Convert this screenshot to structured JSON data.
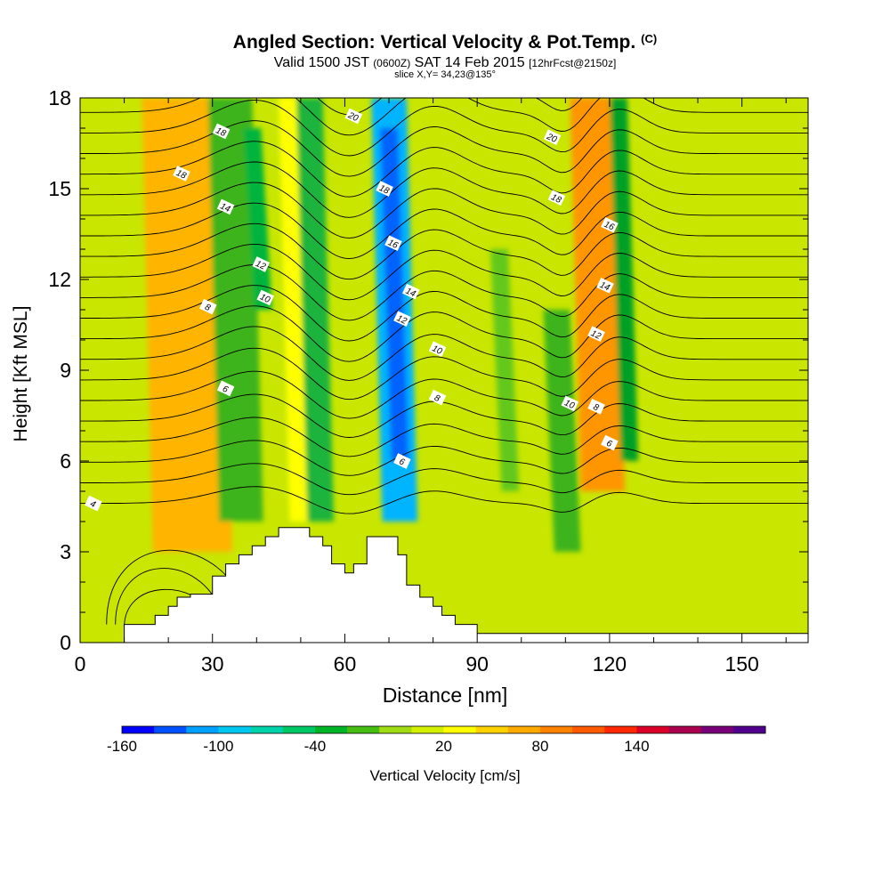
{
  "title": {
    "main": "Angled Section: Vertical Velocity & Pot.Temp.",
    "tag": "(C)",
    "valid_prefix": "Valid 1500 JST",
    "valid_z": "(0600Z)",
    "valid_date": "SAT 14 Feb 2015",
    "valid_fcst": "[12hrFcst@2150z]",
    "slice": "slice X,Y= 34,23@135°"
  },
  "chart_data": {
    "type": "heatmap",
    "xlabel": "Distance [nm]",
    "ylabel": "Height [Kft MSL]",
    "xlim": [
      0,
      165
    ],
    "ylim": [
      0,
      18
    ],
    "x_ticks": [
      "0",
      "30",
      "60",
      "90",
      "120",
      "150"
    ],
    "y_ticks": [
      "0",
      "3",
      "6",
      "9",
      "12",
      "15",
      "18"
    ],
    "colorbar": {
      "label": "Vertical Velocity [cm/s]",
      "tick_labels": [
        "-160",
        "-100",
        "-40",
        "20",
        "80",
        "140"
      ],
      "colors": [
        "#0000ff",
        "#0050ff",
        "#00a0ff",
        "#00c8f0",
        "#00d2aa",
        "#00c864",
        "#00b428",
        "#46be14",
        "#a0dc14",
        "#d2f000",
        "#ffff00",
        "#ffd200",
        "#ffaa00",
        "#ff8200",
        "#ff5a00",
        "#ff2800",
        "#dc0028",
        "#aa0050",
        "#780078",
        "#50008c"
      ]
    },
    "background_color": "#c8e600",
    "bands": [
      {
        "x": 23,
        "half_width": 4,
        "class": "orange-red",
        "color": "#ff7800",
        "y_range": [
          6,
          18
        ]
      },
      {
        "x": 23,
        "half_width": 9,
        "class": "orange",
        "color": "#ffb400",
        "y_range": [
          3,
          18
        ]
      },
      {
        "x": 34,
        "half_width": 5,
        "class": "dark-green",
        "color": "#3cb41e",
        "y_range": [
          4,
          18
        ]
      },
      {
        "x": 39,
        "half_width": 2,
        "class": "green",
        "color": "#00b43c",
        "y_range": [
          11,
          17
        ]
      },
      {
        "x": 47,
        "half_width": 2,
        "class": "yellow",
        "color": "#ffff00",
        "y_range": [
          4,
          18
        ]
      },
      {
        "x": 52,
        "half_width": 3,
        "class": "green",
        "color": "#1eb43c",
        "y_range": [
          4,
          18
        ]
      },
      {
        "x": 70,
        "half_width": 4,
        "class": "cyan-blue",
        "color": "#00b4ff",
        "y_range": [
          4,
          18
        ]
      },
      {
        "x": 70,
        "half_width": 2,
        "class": "blue",
        "color": "#0064ff",
        "y_range": [
          6,
          17
        ]
      },
      {
        "x": 95,
        "half_width": 2,
        "class": "green",
        "color": "#64c81e",
        "y_range": [
          5,
          13
        ]
      },
      {
        "x": 108,
        "half_width": 3,
        "class": "green",
        "color": "#3cb41e",
        "y_range": [
          3,
          11
        ]
      },
      {
        "x": 116,
        "half_width": 3,
        "class": "red",
        "color": "#ff4600",
        "y_range": [
          6,
          13
        ]
      },
      {
        "x": 116,
        "half_width": 5,
        "class": "orange",
        "color": "#ff9600",
        "y_range": [
          5,
          18
        ]
      },
      {
        "x": 122,
        "half_width": 2,
        "class": "dark-green",
        "color": "#00a028",
        "y_range": [
          6,
          18
        ]
      }
    ],
    "terrain_profile": {
      "x": [
        0,
        10,
        17,
        20,
        22,
        25,
        30,
        33,
        36,
        39,
        42,
        45,
        47,
        50,
        52,
        55,
        57,
        60,
        62,
        65,
        67,
        70,
        72,
        74,
        77,
        80,
        82,
        85,
        90,
        165
      ],
      "height": [
        0,
        0.6,
        0.9,
        1.2,
        1.5,
        1.6,
        2.2,
        2.6,
        2.9,
        3.2,
        3.5,
        3.8,
        3.8,
        3.8,
        3.5,
        3.2,
        2.6,
        2.3,
        2.6,
        3.5,
        3.5,
        3.5,
        2.9,
        1.9,
        1.5,
        1.2,
        0.9,
        0.6,
        0.3,
        0.3
      ]
    },
    "isentropes": {
      "levels": [
        4,
        6,
        8,
        10,
        12,
        14,
        16,
        18,
        20
      ],
      "labels": [
        {
          "text": "4",
          "x": 3,
          "y": 4.6
        },
        {
          "text": "6",
          "x": 33,
          "y": 8.4
        },
        {
          "text": "8",
          "x": 29,
          "y": 11.1
        },
        {
          "text": "10",
          "x": 42,
          "y": 11.4
        },
        {
          "text": "12",
          "x": 41,
          "y": 12.5
        },
        {
          "text": "14",
          "x": 33,
          "y": 14.4
        },
        {
          "text": "18",
          "x": 23,
          "y": 15.5
        },
        {
          "text": "18",
          "x": 32,
          "y": 16.9
        },
        {
          "text": "20",
          "x": 62,
          "y": 17.4
        },
        {
          "text": "18",
          "x": 69,
          "y": 15.0
        },
        {
          "text": "16",
          "x": 71,
          "y": 13.2
        },
        {
          "text": "14",
          "x": 75,
          "y": 11.6
        },
        {
          "text": "12",
          "x": 73,
          "y": 10.7
        },
        {
          "text": "10",
          "x": 81,
          "y": 9.7
        },
        {
          "text": "8",
          "x": 81,
          "y": 8.1
        },
        {
          "text": "6",
          "x": 73,
          "y": 6.0
        },
        {
          "text": "20",
          "x": 107,
          "y": 16.7
        },
        {
          "text": "18",
          "x": 108,
          "y": 14.7
        },
        {
          "text": "16",
          "x": 120,
          "y": 13.8
        },
        {
          "text": "14",
          "x": 119,
          "y": 11.8
        },
        {
          "text": "12",
          "x": 117,
          "y": 10.2
        },
        {
          "text": "10",
          "x": 111,
          "y": 7.9
        },
        {
          "text": "8",
          "x": 117,
          "y": 7.8
        },
        {
          "text": "6",
          "x": 120,
          "y": 6.6
        }
      ]
    }
  }
}
